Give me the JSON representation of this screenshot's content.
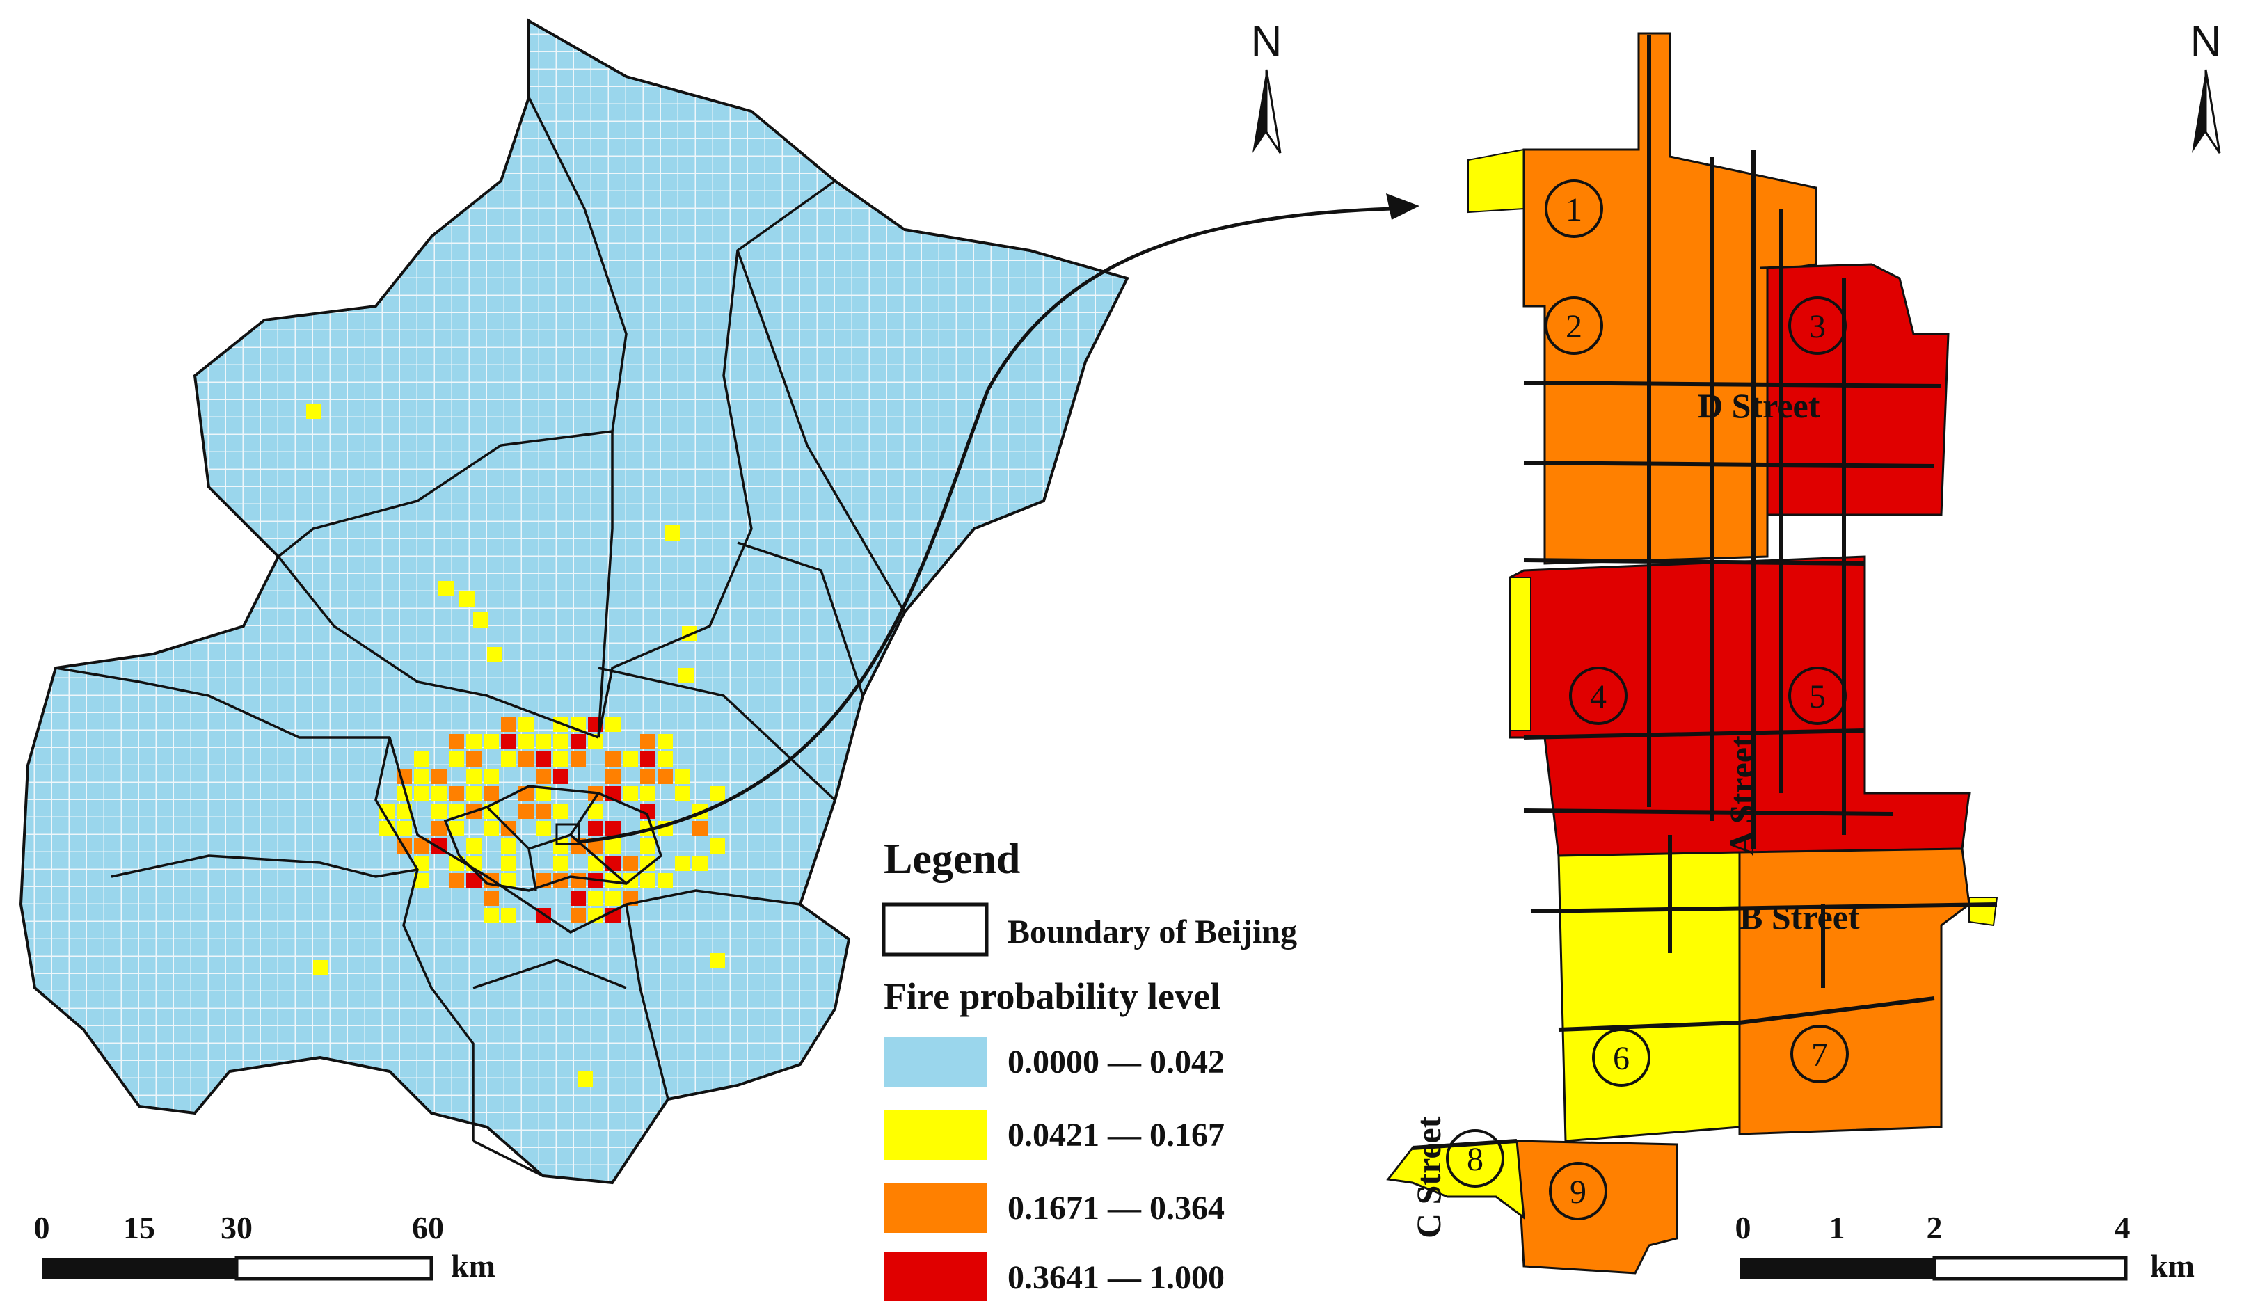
{
  "legend": {
    "title": "Legend",
    "boundary_label": "Boundary of Beijing",
    "level_title": "Fire probability level",
    "classes": [
      {
        "range": "0.0000 — 0.042",
        "color": "#9ad6ec"
      },
      {
        "range": "0.0421 — 0.167",
        "color": "#ffff00"
      },
      {
        "range": "0.1671 — 0.364",
        "color": "#ff8000"
      },
      {
        "range": "0.3641 — 1.000",
        "color": "#e00000"
      }
    ]
  },
  "north_arrow": {
    "label": "N"
  },
  "left_scale": {
    "ticks": [
      "0",
      "15",
      "30",
      "60"
    ],
    "unit": "km"
  },
  "right_scale": {
    "ticks": [
      "0",
      "1",
      "2",
      "4"
    ],
    "unit": "km"
  },
  "streets": {
    "a": "A Street",
    "b": "B Street",
    "c": "C Street",
    "d": "D Street"
  },
  "zones": [
    "1",
    "2",
    "3",
    "4",
    "5",
    "6",
    "7",
    "8",
    "9"
  ]
}
